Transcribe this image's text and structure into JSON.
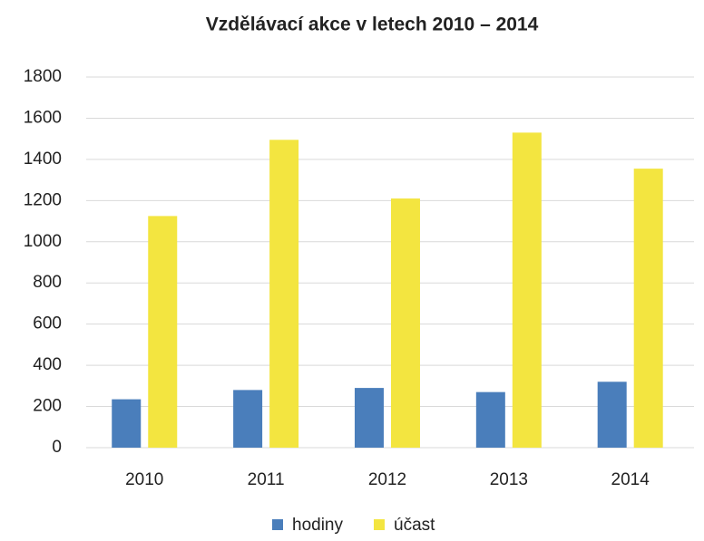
{
  "chart_data": {
    "type": "bar",
    "title": "Vzdělávací akce v letech 2010 – 2014",
    "categories": [
      "2010",
      "2011",
      "2012",
      "2013",
      "2014"
    ],
    "series": [
      {
        "name": "hodiny",
        "color": "#4a7ebb",
        "values": [
          235,
          280,
          290,
          270,
          320
        ]
      },
      {
        "name": "účast",
        "color": "#f3e540",
        "values": [
          1125,
          1495,
          1210,
          1530,
          1355
        ]
      }
    ],
    "ylim": [
      0,
      1800
    ],
    "yticks": [
      0,
      200,
      400,
      600,
      800,
      1000,
      1200,
      1400,
      1600,
      1800
    ],
    "grid": true,
    "legend": "bottom"
  }
}
